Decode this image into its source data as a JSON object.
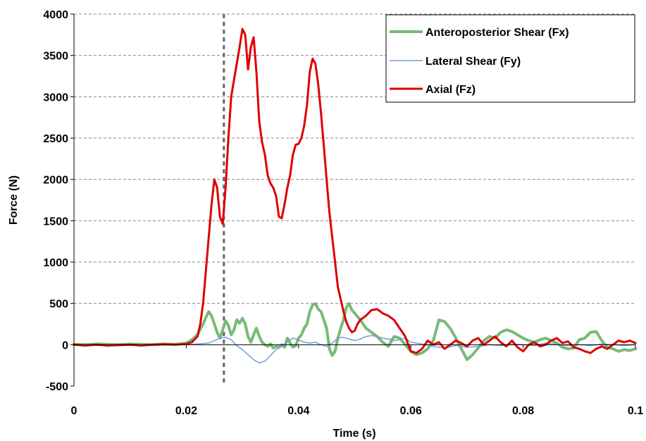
{
  "chart_data": {
    "type": "line",
    "title": "",
    "xlabel": "Time (s)",
    "ylabel": "Force (N)",
    "xlim": [
      0,
      0.1
    ],
    "ylim": [
      -500,
      4000
    ],
    "xticks": [
      0,
      0.02,
      0.04,
      0.06,
      0.08,
      0.1
    ],
    "xtick_labels": [
      "0",
      "0.02",
      "0.04",
      "0.06",
      "0.08",
      "0.1"
    ],
    "yticks": [
      -500,
      0,
      500,
      1000,
      1500,
      2000,
      2500,
      3000,
      3500,
      4000
    ],
    "ytick_labels": [
      "-500",
      "0",
      "500",
      "1000",
      "1500",
      "2000",
      "2500",
      "3000",
      "3500",
      "4000"
    ],
    "grid": "horizontal-dashed",
    "legend_position": "top-right",
    "vertical_marker_x": 0.0267,
    "series": [
      {
        "name": "Anteroposterior Shear (Fx)",
        "color": "#77bb77",
        "width": 4,
        "x": [
          0,
          0.002,
          0.004,
          0.006,
          0.008,
          0.01,
          0.012,
          0.014,
          0.016,
          0.018,
          0.02,
          0.021,
          0.022,
          0.023,
          0.0235,
          0.024,
          0.0245,
          0.025,
          0.0255,
          0.026,
          0.0265,
          0.027,
          0.0275,
          0.028,
          0.0285,
          0.029,
          0.0295,
          0.03,
          0.0305,
          0.031,
          0.0315,
          0.032,
          0.0325,
          0.033,
          0.0335,
          0.034,
          0.0345,
          0.035,
          0.0355,
          0.036,
          0.0365,
          0.037,
          0.0375,
          0.038,
          0.0385,
          0.039,
          0.0395,
          0.04,
          0.0405,
          0.041,
          0.0415,
          0.042,
          0.0425,
          0.043,
          0.0435,
          0.044,
          0.0445,
          0.045,
          0.0455,
          0.046,
          0.0465,
          0.047,
          0.0475,
          0.048,
          0.0485,
          0.049,
          0.0495,
          0.05,
          0.051,
          0.052,
          0.053,
          0.054,
          0.055,
          0.056,
          0.057,
          0.058,
          0.059,
          0.06,
          0.061,
          0.062,
          0.063,
          0.064,
          0.065,
          0.066,
          0.067,
          0.068,
          0.069,
          0.07,
          0.071,
          0.072,
          0.073,
          0.074,
          0.075,
          0.076,
          0.077,
          0.078,
          0.079,
          0.08,
          0.081,
          0.082,
          0.083,
          0.084,
          0.085,
          0.086,
          0.087,
          0.088,
          0.089,
          0.09,
          0.091,
          0.092,
          0.093,
          0.094,
          0.095,
          0.096,
          0.097,
          0.098,
          0.099,
          0.1
        ],
        "y": [
          5,
          0,
          10,
          5,
          0,
          8,
          5,
          0,
          10,
          5,
          20,
          60,
          120,
          250,
          330,
          400,
          350,
          250,
          150,
          80,
          180,
          290,
          230,
          120,
          180,
          300,
          260,
          320,
          250,
          100,
          30,
          120,
          200,
          100,
          30,
          0,
          -20,
          10,
          -40,
          -20,
          -30,
          0,
          -30,
          80,
          20,
          -30,
          -10,
          80,
          120,
          200,
          250,
          400,
          480,
          500,
          430,
          400,
          300,
          200,
          -50,
          -130,
          -80,
          80,
          200,
          300,
          450,
          500,
          420,
          380,
          300,
          200,
          150,
          100,
          30,
          -20,
          100,
          80,
          0,
          -80,
          -120,
          -100,
          -50,
          50,
          300,
          280,
          200,
          80,
          -50,
          -180,
          -120,
          -40,
          50,
          100,
          80,
          150,
          180,
          160,
          120,
          80,
          50,
          30,
          60,
          80,
          50,
          20,
          -30,
          -50,
          -40,
          60,
          80,
          150,
          160,
          50,
          -30,
          -50,
          -80,
          -60,
          -70,
          -50
        ]
      },
      {
        "name": "Lateral Shear (Fy)",
        "color": "#7799dd",
        "width": 1.5,
        "x": [
          0,
          0.005,
          0.01,
          0.015,
          0.02,
          0.022,
          0.024,
          0.025,
          0.026,
          0.027,
          0.028,
          0.029,
          0.03,
          0.031,
          0.032,
          0.033,
          0.034,
          0.035,
          0.036,
          0.037,
          0.038,
          0.039,
          0.04,
          0.041,
          0.042,
          0.043,
          0.044,
          0.045,
          0.046,
          0.047,
          0.048,
          0.049,
          0.05,
          0.051,
          0.052,
          0.053,
          0.054,
          0.055,
          0.056,
          0.057,
          0.058,
          0.059,
          0.06,
          0.062,
          0.064,
          0.066,
          0.068,
          0.07,
          0.072,
          0.074,
          0.076,
          0.078,
          0.08,
          0.082,
          0.084,
          0.086,
          0.088,
          0.09,
          0.092,
          0.094,
          0.096,
          0.098,
          0.1
        ],
        "y": [
          0,
          0,
          0,
          0,
          0,
          10,
          20,
          50,
          80,
          90,
          60,
          -10,
          -60,
          -120,
          -180,
          -220,
          -200,
          -130,
          -60,
          -20,
          30,
          80,
          60,
          30,
          20,
          30,
          0,
          -20,
          20,
          80,
          90,
          70,
          50,
          70,
          100,
          110,
          100,
          80,
          70,
          50,
          60,
          80,
          30,
          10,
          -20,
          -40,
          -10,
          -30,
          -20,
          0,
          -10,
          10,
          0,
          -10,
          20,
          0,
          -10,
          0,
          -10,
          10,
          0,
          -10,
          0
        ]
      },
      {
        "name": "Axial (Fz)",
        "color": "#dd0000",
        "width": 3,
        "x": [
          0,
          0.002,
          0.004,
          0.006,
          0.008,
          0.01,
          0.012,
          0.014,
          0.016,
          0.018,
          0.02,
          0.021,
          0.022,
          0.0225,
          0.023,
          0.0235,
          0.024,
          0.0245,
          0.025,
          0.0255,
          0.026,
          0.0265,
          0.027,
          0.0275,
          0.028,
          0.0285,
          0.029,
          0.0295,
          0.03,
          0.0305,
          0.031,
          0.0315,
          0.032,
          0.0325,
          0.033,
          0.0335,
          0.034,
          0.0345,
          0.035,
          0.0355,
          0.036,
          0.0365,
          0.037,
          0.0375,
          0.038,
          0.0385,
          0.039,
          0.0395,
          0.04,
          0.0405,
          0.041,
          0.0415,
          0.042,
          0.0425,
          0.043,
          0.0435,
          0.044,
          0.0445,
          0.045,
          0.0455,
          0.046,
          0.0465,
          0.047,
          0.0475,
          0.048,
          0.0485,
          0.049,
          0.0495,
          0.05,
          0.0505,
          0.051,
          0.052,
          0.053,
          0.054,
          0.055,
          0.056,
          0.057,
          0.058,
          0.059,
          0.06,
          0.061,
          0.062,
          0.063,
          0.064,
          0.065,
          0.066,
          0.067,
          0.068,
          0.069,
          0.07,
          0.071,
          0.072,
          0.073,
          0.074,
          0.075,
          0.076,
          0.077,
          0.078,
          0.079,
          0.08,
          0.081,
          0.082,
          0.083,
          0.084,
          0.085,
          0.086,
          0.087,
          0.088,
          0.089,
          0.09,
          0.091,
          0.092,
          0.093,
          0.094,
          0.095,
          0.096,
          0.097,
          0.098,
          0.099,
          0.1
        ],
        "y": [
          0,
          -10,
          0,
          -10,
          -5,
          0,
          -10,
          0,
          5,
          0,
          10,
          30,
          100,
          250,
          500,
          900,
          1300,
          1700,
          2000,
          1900,
          1550,
          1460,
          1900,
          2500,
          3000,
          3200,
          3400,
          3600,
          3820,
          3750,
          3330,
          3600,
          3720,
          3300,
          2700,
          2450,
          2300,
          2050,
          1950,
          1900,
          1800,
          1550,
          1530,
          1700,
          1900,
          2050,
          2300,
          2420,
          2430,
          2500,
          2650,
          2900,
          3300,
          3460,
          3400,
          3150,
          2800,
          2400,
          2000,
          1600,
          1300,
          1000,
          700,
          550,
          400,
          280,
          200,
          150,
          170,
          250,
          300,
          350,
          420,
          430,
          380,
          350,
          300,
          200,
          100,
          -80,
          -100,
          -50,
          50,
          0,
          30,
          -50,
          0,
          50,
          20,
          -20,
          50,
          80,
          0,
          50,
          100,
          30,
          -20,
          50,
          -30,
          -80,
          0,
          30,
          -20,
          0,
          50,
          80,
          20,
          40,
          -30,
          -50,
          -80,
          -100,
          -50,
          -20,
          -50,
          0,
          50,
          30,
          50,
          20
        ]
      }
    ]
  }
}
